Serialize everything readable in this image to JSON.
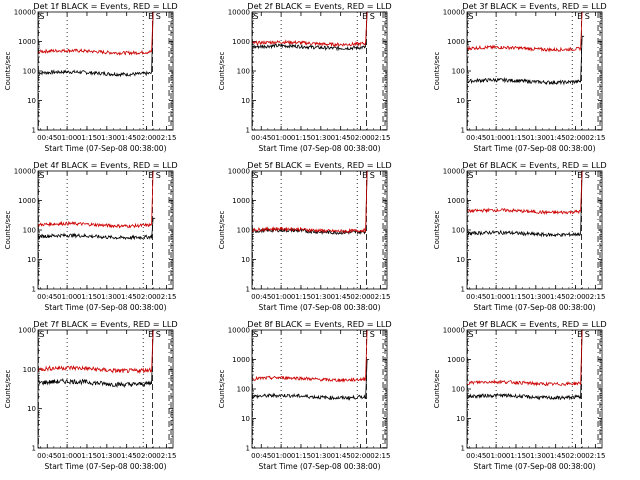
{
  "chart_data": [
    {
      "type": "line",
      "title": "Det 1f BLACK = Events, RED = LLD",
      "xlabel": "Start Time (07-Sep-08 00:38:00)",
      "ylabel": "Counts/sec",
      "y_scale": "log",
      "ylim": [
        1,
        10000
      ],
      "x_ticks": [
        "00:45",
        "01:00",
        "01:15",
        "01:30",
        "01:45",
        "02:00",
        "02:15"
      ],
      "y_ticks": [
        "1",
        "10",
        "100",
        "1000",
        "10000"
      ],
      "annotations": [
        "S",
        "E",
        "S"
      ],
      "series": [
        {
          "color": "#000000",
          "level": 85,
          "jump": 10000
        },
        {
          "color": "#cc0000",
          "level": 450,
          "jump": 10000
        }
      ]
    },
    {
      "type": "line",
      "title": "Det 2f BLACK = Events, RED = LLD",
      "xlabel": "Start Time (07-Sep-08 00:38:00)",
      "ylabel": "Counts/sec",
      "y_scale": "log",
      "ylim": [
        1,
        10000
      ],
      "x_ticks": [
        "00:45",
        "01:00",
        "01:15",
        "01:30",
        "01:45",
        "02:00",
        "02:15"
      ],
      "y_ticks": [
        "1",
        "10",
        "100",
        "1000",
        "10000"
      ],
      "annotations": [
        "S",
        "E",
        "S"
      ],
      "series": [
        {
          "color": "#000000",
          "level": 650,
          "jump": 10000
        },
        {
          "color": "#cc0000",
          "level": 870,
          "jump": 10000
        }
      ]
    },
    {
      "type": "line",
      "title": "Det 3f BLACK = Events, RED = LLD",
      "xlabel": "Start Time (07-Sep-08 00:38:00)",
      "ylabel": "Counts/sec",
      "y_scale": "log",
      "ylim": [
        1,
        10000
      ],
      "x_ticks": [
        "00:45",
        "01:00",
        "01:15",
        "01:30",
        "01:45",
        "02:00",
        "02:15"
      ],
      "y_ticks": [
        "1",
        "10",
        "100",
        "1000",
        "10000"
      ],
      "annotations": [
        "S",
        "E",
        "S"
      ],
      "series": [
        {
          "color": "#000000",
          "level": 45,
          "jump": 1500
        },
        {
          "color": "#cc0000",
          "level": 580,
          "jump": 10000
        }
      ]
    },
    {
      "type": "line",
      "title": "Det 4f BLACK = Events, RED = LLD",
      "xlabel": "Start Time (07-Sep-08 00:38:00)",
      "ylabel": "Counts/sec",
      "y_scale": "log",
      "ylim": [
        1,
        10000
      ],
      "x_ticks": [
        "00:45",
        "01:00",
        "01:15",
        "01:30",
        "01:45",
        "02:00",
        "02:15"
      ],
      "y_ticks": [
        "1",
        "10",
        "100",
        "1000",
        "10000"
      ],
      "annotations": [
        "S",
        "E",
        "S"
      ],
      "series": [
        {
          "color": "#000000",
          "level": 60,
          "jump": 250
        },
        {
          "color": "#cc0000",
          "level": 150,
          "jump": 10000
        }
      ]
    },
    {
      "type": "line",
      "title": "Det 5f BLACK = Events, RED = LLD",
      "xlabel": "Start Time (07-Sep-08 00:38:00)",
      "ylabel": "Counts/sec",
      "y_scale": "log",
      "ylim": [
        1,
        10000
      ],
      "x_ticks": [
        "00:45",
        "01:00",
        "01:15",
        "01:30",
        "01:45",
        "02:00",
        "02:15"
      ],
      "y_ticks": [
        "1",
        "10",
        "100",
        "1000",
        "10000"
      ],
      "annotations": [
        "S",
        "E",
        "S"
      ],
      "series": [
        {
          "color": "#000000",
          "level": 90,
          "jump": 10000
        },
        {
          "color": "#cc0000",
          "level": 100,
          "jump": 10000
        }
      ]
    },
    {
      "type": "line",
      "title": "Det 6f BLACK = Events, RED = LLD",
      "xlabel": "Start Time (07-Sep-08 00:38:00)",
      "ylabel": "Counts/sec",
      "y_scale": "log",
      "ylim": [
        1,
        10000
      ],
      "x_ticks": [
        "00:45",
        "01:00",
        "01:15",
        "01:30",
        "01:45",
        "02:00",
        "02:15"
      ],
      "y_ticks": [
        "1",
        "10",
        "100",
        "1000",
        "10000"
      ],
      "annotations": [
        "S",
        "E",
        "S"
      ],
      "series": [
        {
          "color": "#000000",
          "level": 75,
          "jump": 10000
        },
        {
          "color": "#cc0000",
          "level": 430,
          "jump": 10000
        }
      ]
    },
    {
      "type": "line",
      "title": "Det 7f BLACK = Events, RED = LLD",
      "xlabel": "Start Time (07-Sep-08 00:38:00)",
      "ylabel": "Counts/sec",
      "y_scale": "log",
      "ylim": [
        1,
        1000
      ],
      "x_ticks": [
        "00:45",
        "01:00",
        "01:15",
        "01:30",
        "01:45",
        "02:00",
        "02:15"
      ],
      "y_ticks": [
        "1",
        "10",
        "100",
        "1000"
      ],
      "annotations": [
        "S",
        "E",
        "S"
      ],
      "series": [
        {
          "color": "#000000",
          "level": 45,
          "jump": 1000
        },
        {
          "color": "#cc0000",
          "level": 100,
          "jump": 1000
        }
      ]
    },
    {
      "type": "line",
      "title": "Det 8f BLACK = Events, RED = LLD",
      "xlabel": "Start Time (07-Sep-08 00:38:00)",
      "ylabel": "Counts/sec",
      "y_scale": "log",
      "ylim": [
        1,
        10000
      ],
      "x_ticks": [
        "00:45",
        "01:00",
        "01:15",
        "01:30",
        "01:45",
        "02:00",
        "02:15"
      ],
      "y_ticks": [
        "1",
        "10",
        "100",
        "1000",
        "10000"
      ],
      "annotations": [
        "S",
        "E",
        "S"
      ],
      "series": [
        {
          "color": "#000000",
          "level": 55,
          "jump": 1000
        },
        {
          "color": "#cc0000",
          "level": 220,
          "jump": 10000
        }
      ]
    },
    {
      "type": "line",
      "title": "Det 9f BLACK = Events, RED = LLD",
      "xlabel": "Start Time (07-Sep-08 00:38:00)",
      "ylabel": "Counts/sec",
      "y_scale": "log",
      "ylim": [
        1,
        10000
      ],
      "x_ticks": [
        "00:45",
        "01:00",
        "01:15",
        "01:30",
        "01:45",
        "02:00",
        "02:15"
      ],
      "y_ticks": [
        "1",
        "10",
        "100",
        "1000",
        "10000"
      ],
      "annotations": [
        "S",
        "E",
        "S"
      ],
      "series": [
        {
          "color": "#000000",
          "level": 55,
          "jump": 10000
        },
        {
          "color": "#cc0000",
          "level": 160,
          "jump": 10000
        }
      ]
    }
  ]
}
